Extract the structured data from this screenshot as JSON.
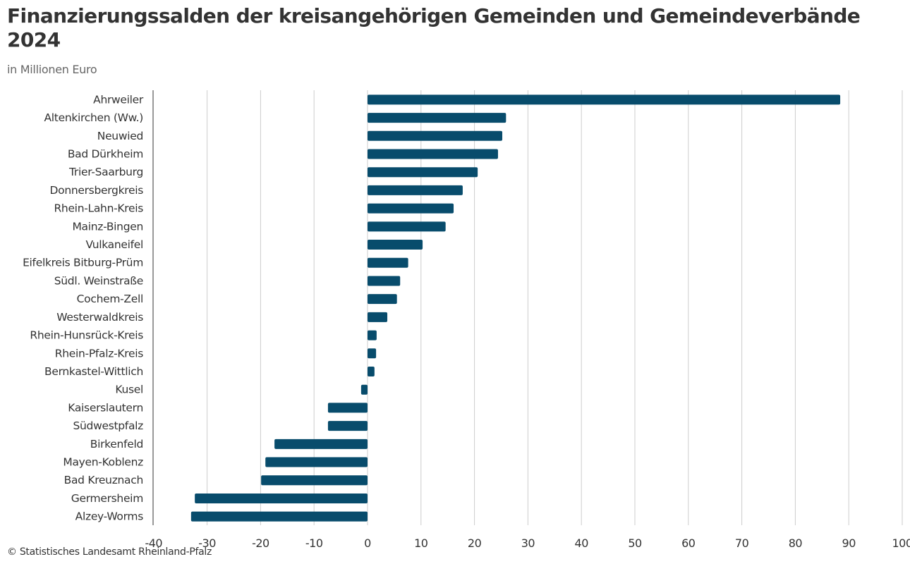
{
  "header": {
    "title": "Finanzierungssalden der kreisangehörigen Gemeinden und Gemeindeverbände 2024",
    "subtitle": "in Millionen Euro"
  },
  "footer": {
    "source": "© Statistisches Landesamt Rheinland-Pfalz"
  },
  "colors": {
    "bar": "#084c6c",
    "grid": "#cccccc",
    "axis": "#333333"
  },
  "chart_data": {
    "type": "bar",
    "orientation": "horizontal",
    "title": "Finanzierungssalden der kreisangehörigen Gemeinden und Gemeindeverbände 2024",
    "subtitle": "in Millionen Euro",
    "xlabel": "",
    "ylabel": "",
    "xlim": [
      -40,
      100
    ],
    "xticks": [
      -40,
      -30,
      -20,
      -10,
      0,
      10,
      20,
      30,
      40,
      50,
      60,
      70,
      80,
      90,
      100
    ],
    "grid": true,
    "legend": "none",
    "categories": [
      "Ahrweiler",
      "Altenkirchen (Ww.)",
      "Neuwied",
      "Bad Dürkheim",
      "Trier-Saarburg",
      "Donnersbergkreis",
      "Rhein-Lahn-Kreis",
      "Mainz-Bingen",
      "Vulkaneifel",
      "Eifelkreis Bitburg-Prüm",
      "Südl. Weinstraße",
      "Cochem-Zell",
      "Westerwaldkreis",
      "Rhein-Hunsrück-Kreis",
      "Rhein-Pfalz-Kreis",
      "Bernkastel-Wittlich",
      "Kusel",
      "Kaiserslautern",
      "Südwestpfalz",
      "Birkenfeld",
      "Mayen-Koblenz",
      "Bad Kreuznach",
      "Germersheim",
      "Alzey-Worms"
    ],
    "values": [
      88.4,
      25.9,
      25.2,
      24.4,
      20.6,
      17.8,
      16.1,
      14.6,
      10.3,
      7.6,
      6.1,
      5.5,
      3.7,
      1.7,
      1.6,
      1.3,
      -1.2,
      -7.4,
      -7.4,
      -17.4,
      -19.1,
      -19.9,
      -32.3,
      -33.0
    ]
  }
}
